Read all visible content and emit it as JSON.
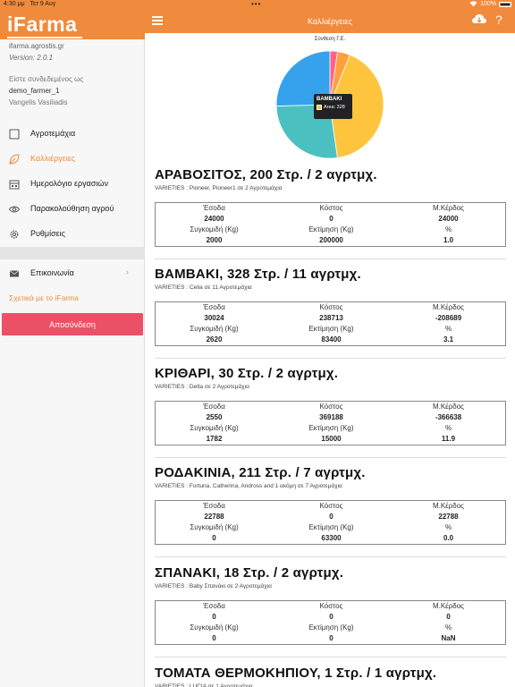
{
  "status": {
    "time": "4:30 μμ",
    "date": "Τετ 9 Αυγ",
    "battery": "100%",
    "dots": "•••"
  },
  "sidebar": {
    "logo": "iFarma",
    "site": "ifarma.agrostis.gr",
    "version": "Version: 2.0.1",
    "logged_in": "Είστε συνδεδεμένος ως",
    "username": "demo_farmer_1",
    "fullname": "Vangelis Vasiliadis",
    "items": [
      {
        "label": "Αγροτεμάχια",
        "icon": "square-icon"
      },
      {
        "label": "Καλλιέργειες",
        "icon": "leaf-icon",
        "active": true
      },
      {
        "label": "Ημερολόγιο εργασιών",
        "icon": "calendar-icon"
      },
      {
        "label": "Παρακολούθηση αγρού",
        "icon": "eye-icon"
      },
      {
        "label": "Ρυθμίσεις",
        "icon": "gear-icon"
      }
    ],
    "contact": "Επικοινωνία",
    "about": "Σχετικά με το iFarma",
    "logout": "Αποσύνδεση"
  },
  "topbar": {
    "title": "Καλλιέργειες",
    "help": "?"
  },
  "chart_data": {
    "type": "pie",
    "title": "Σύνθεση Γ.Ε.",
    "slices": [
      {
        "name": "ΑΡΑΒΟΣΙΤΟΣ",
        "value": 200,
        "color": "#36a2eb"
      },
      {
        "name": "ΒΑΜΒΑΚΙ",
        "value": 328,
        "color": "#ffc43d"
      },
      {
        "name": "ΚΡΙΘΑΡΙ",
        "value": 30,
        "color": "#ff9f40"
      },
      {
        "name": "ΡΟΔΑΚΙΝΙΑ",
        "value": 211,
        "color": "#4bc0c0"
      },
      {
        "name": "ΣΠΑΝΑΚΙ",
        "value": 18,
        "color": "#ff6384"
      }
    ],
    "tooltip": {
      "title": "ΒΑΜΒΑΚΙ",
      "label": "Area: 328"
    }
  },
  "headers": {
    "income": "Έσοδα",
    "cost": "Κόστος",
    "profit": "Μ.Κέρδος",
    "harvest": "Συγκομιδή (Kg)",
    "estimate": "Εκτίμηση (Kg)",
    "percent": "%"
  },
  "crops": [
    {
      "title": "ΑΡΑΒΟΣΙΤΟΣ, 200 Στρ. / 2 αγρτμχ.",
      "varieties": "VARIETIES : Pioneer, Pioneer1 σε 2 Αγροτεμάχια",
      "income": "24000",
      "cost": "0",
      "profit": "24000",
      "harvest": "2000",
      "estimate": "200000",
      "percent": "1.0"
    },
    {
      "title": "ΒΑΜΒΑΚΙ, 328 Στρ. / 11 αγρτμχ.",
      "varieties": "VARIETIES : Celia σε 11 Αγροτεμάχια",
      "income": "30024",
      "cost": "238713",
      "profit": "-208689",
      "harvest": "2620",
      "estimate": "83400",
      "percent": "3.1"
    },
    {
      "title": "ΚΡΙΘΑΡΙ, 30 Στρ. / 2 αγρτμχ.",
      "varieties": "VARIETIES : Delta σε 2 Αγροτεμάχια",
      "income": "2550",
      "cost": "369188",
      "profit": "-366638",
      "harvest": "1782",
      "estimate": "15000",
      "percent": "11.9"
    },
    {
      "title": "ΡΟΔΑΚΙΝΙΑ, 211 Στρ. / 7 αγρτμχ.",
      "varieties": "VARIETIES : Fortuna, Catherina, Andross and 1 ακόμη σε 7 Αγροτεμάχια",
      "income": "22788",
      "cost": "0",
      "profit": "22788",
      "harvest": "0",
      "estimate": "63300",
      "percent": "0.0"
    },
    {
      "title": "ΣΠΑΝΑΚΙ, 18 Στρ. / 2 αγρτμχ.",
      "varieties": "VARIETIES : Baby Σπανάκι σε 2 Αγροτεμάχια",
      "income": "0",
      "cost": "0",
      "profit": "0",
      "harvest": "0",
      "estimate": "0",
      "percent": "NaN"
    },
    {
      "title": "ΤΟΜΑΤΑ ΘΕΡΜΟΚΗΠΙΟΥ, 1 Στρ. / 1 αγρτμχ.",
      "varieties": "VARIETIES : LUCIA σε 1 Αγροτεμάχια"
    }
  ]
}
